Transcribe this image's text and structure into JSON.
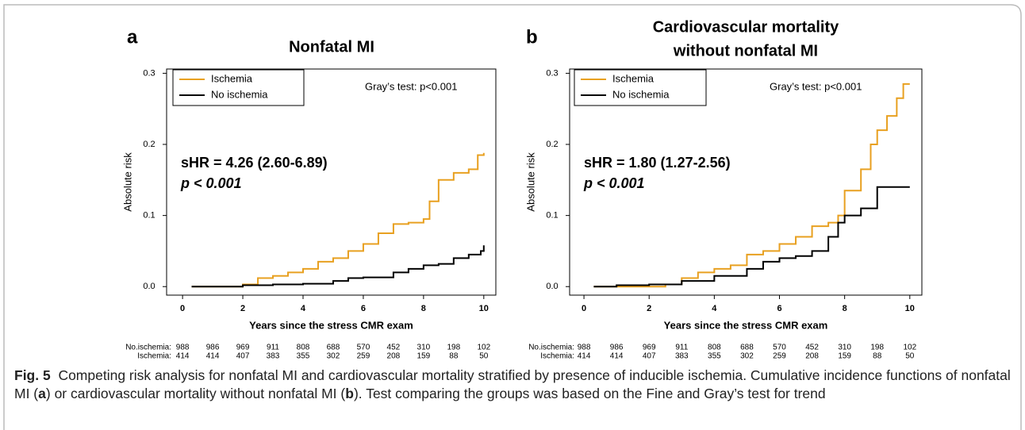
{
  "chart_data": [
    {
      "type": "line",
      "panel": "a",
      "title": [
        "Nonfatal MI"
      ],
      "x_label": "Years since the stress CMR exam",
      "y_label": "Absolute risk",
      "annotations": [
        "Gray’s test: p<0.001",
        "sHR = 4.26 (2.60-6.89)",
        "p < 0.001"
      ],
      "xlim": [
        -0.53,
        10.4
      ],
      "ylim": [
        -0.012,
        0.306
      ],
      "xticks": [
        0,
        2,
        4,
        6,
        8,
        10
      ],
      "yticks": [
        {
          "value": 0,
          "label": "0.0"
        },
        0.1,
        0.2,
        0.3
      ],
      "step": true,
      "legend": "upper left",
      "series": [
        {
          "name": "Ischemia",
          "color": "#e8a020",
          "x": [
            0.3,
            1.5,
            2,
            2.5,
            3,
            3.5,
            4,
            4.5,
            5,
            5.5,
            6,
            6.5,
            7,
            7.5,
            8,
            8.2,
            8.5,
            9,
            9.5,
            9.8,
            10
          ],
          "values": [
            0,
            0,
            0.003,
            0.012,
            0.015,
            0.02,
            0.025,
            0.035,
            0.04,
            0.05,
            0.06,
            0.075,
            0.088,
            0.09,
            0.095,
            0.12,
            0.15,
            0.16,
            0.165,
            0.185,
            0.188
          ]
        },
        {
          "name": "No ischemia",
          "color": "#000000",
          "x": [
            0.3,
            1.5,
            2,
            3,
            4,
            5,
            5.5,
            6,
            7,
            7.5,
            8,
            8.5,
            9,
            9.5,
            9.9,
            10
          ],
          "values": [
            0,
            0,
            0.002,
            0.003,
            0.004,
            0.008,
            0.012,
            0.013,
            0.02,
            0.025,
            0.03,
            0.032,
            0.04,
            0.045,
            0.05,
            0.058
          ]
        }
      ],
      "risk_table": [
        {
          "label": "No.ischemia:",
          "values": [
            "988",
            "986",
            "969",
            "911",
            "808",
            "688",
            "570",
            "452",
            "310",
            "198",
            "102"
          ]
        },
        {
          "label": "Ischemia:",
          "values": [
            "414",
            "414",
            "407",
            "383",
            "355",
            "302",
            "259",
            "208",
            "159",
            "88",
            "50"
          ]
        }
      ]
    },
    {
      "type": "line",
      "panel": "b",
      "title": [
        "Cardiovascular mortality",
        "without nonfatal MI"
      ],
      "x_label": "Years since the stress CMR exam",
      "y_label": "Absolute risk",
      "annotations": [
        "Gray’s test: p<0.001",
        "sHR = 1.80 (1.27-2.56)",
        "p < 0.001"
      ],
      "xlim": [
        -0.44,
        10.37
      ],
      "ylim": [
        -0.012,
        0.306
      ],
      "xticks": [
        0,
        2,
        4,
        6,
        8,
        10
      ],
      "yticks": [
        {
          "value": 0,
          "label": "0.0"
        },
        0.1,
        0.2,
        0.3
      ],
      "step": true,
      "legend": "upper left",
      "series": [
        {
          "name": "Ischemia",
          "color": "#e8a020",
          "x": [
            0.3,
            1.5,
            2,
            2.5,
            3,
            3.5,
            4,
            4.5,
            5,
            5.5,
            6,
            6.5,
            7,
            7.5,
            7.8,
            8,
            8.5,
            8.8,
            9,
            9.3,
            9.6,
            9.8,
            10
          ],
          "values": [
            0,
            0,
            0,
            0.003,
            0.012,
            0.02,
            0.025,
            0.03,
            0.045,
            0.05,
            0.06,
            0.07,
            0.085,
            0.09,
            0.1,
            0.135,
            0.165,
            0.2,
            0.22,
            0.24,
            0.265,
            0.285,
            0.285
          ]
        },
        {
          "name": "No ischemia",
          "color": "#000000",
          "x": [
            0.3,
            1,
            2,
            3,
            4,
            5,
            5.5,
            6,
            6.5,
            7,
            7.5,
            7.8,
            8,
            8.5,
            9,
            9.5,
            10
          ],
          "values": [
            0,
            0.002,
            0.003,
            0.008,
            0.015,
            0.025,
            0.035,
            0.04,
            0.043,
            0.05,
            0.07,
            0.09,
            0.1,
            0.11,
            0.14,
            0.14,
            0.14
          ]
        }
      ],
      "risk_table": [
        {
          "label": "No.ischemia:",
          "values": [
            "988",
            "986",
            "969",
            "911",
            "808",
            "688",
            "570",
            "452",
            "310",
            "198",
            "102"
          ]
        },
        {
          "label": "Ischemia:",
          "values": [
            "414",
            "414",
            "407",
            "383",
            "355",
            "302",
            "259",
            "208",
            "159",
            "88",
            "50"
          ]
        }
      ]
    }
  ],
  "caption": {
    "label": "Fig. 5",
    "parts": [
      "Competing risk analysis for nonfatal MI and cardiovascular mortality stratified by presence of inducible ischemia. Cumulative incidence functions of nonfatal MI (",
      "a",
      ") or cardiovascular mortality without nonfatal MI (",
      "b",
      "). Test comparing the groups was based on the Fine and Gray’s test for trend"
    ]
  }
}
